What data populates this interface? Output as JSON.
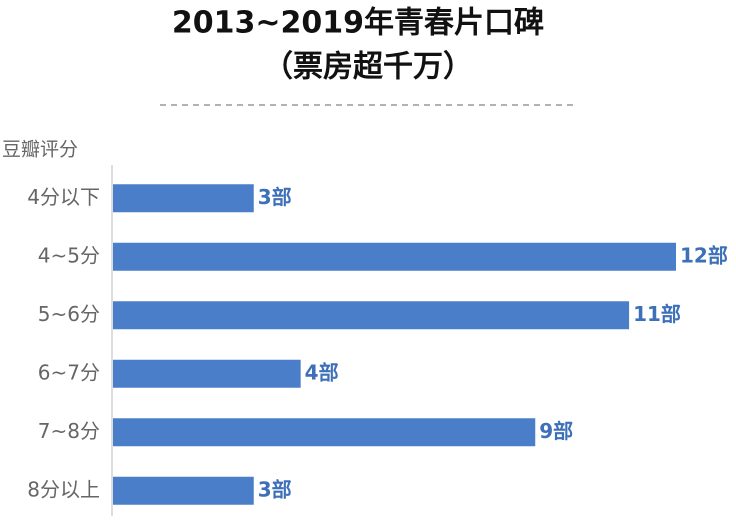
{
  "chart_data": {
    "type": "bar",
    "orientation": "horizontal",
    "title": "2013~2019年青春片口碑",
    "subtitle": "（票房超千万）",
    "y_label": "豆瓣评分",
    "categories": [
      "4分以下",
      "4~5分",
      "5~6分",
      "6~7分",
      "7~8分",
      "8分以上"
    ],
    "values": [
      3,
      12,
      11,
      4,
      9,
      3
    ],
    "value_labels": [
      "3部",
      "12部",
      "11部",
      "4部",
      "9部",
      "3部"
    ],
    "color": "#4a7ec8"
  }
}
